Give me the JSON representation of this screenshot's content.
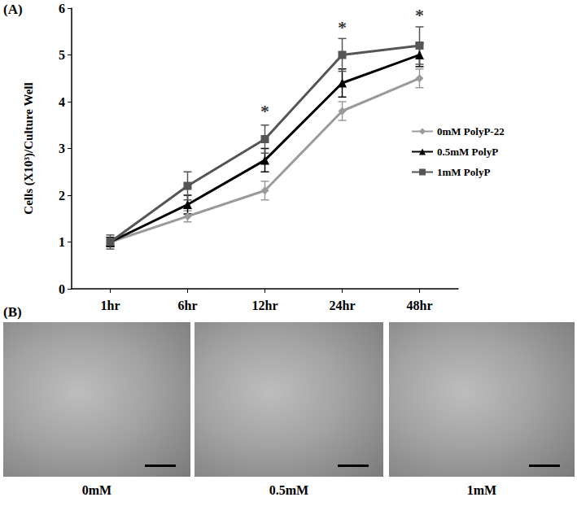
{
  "chart_data": {
    "type": "line",
    "y_label": "Cells (X10³)/Culture Well",
    "categories": [
      "1hr",
      "6hr",
      "12hr",
      "24hr",
      "48hr"
    ],
    "series": [
      {
        "name": "0mM PolyP-22",
        "color": "#9a9a9a",
        "marker": "diamond",
        "values": [
          1.0,
          1.55,
          2.1,
          3.8,
          4.5
        ],
        "errors": [
          0.1,
          0.12,
          0.2,
          0.2,
          0.2
        ]
      },
      {
        "name": "0.5mM PolyP",
        "color": "#000000",
        "marker": "triangle",
        "values": [
          1.0,
          1.8,
          2.75,
          4.4,
          5.0
        ],
        "errors": [
          0.1,
          0.2,
          0.25,
          0.3,
          0.25
        ]
      },
      {
        "name": "1mM PolyP",
        "color": "#555555",
        "marker": "square",
        "values": [
          1.0,
          2.2,
          3.2,
          5.0,
          5.2
        ],
        "errors": [
          0.15,
          0.3,
          0.3,
          0.35,
          0.4
        ]
      }
    ],
    "annotations": [
      {
        "text": "*",
        "x": "12hr",
        "y": 3.8
      },
      {
        "text": "*",
        "x": "24hr",
        "y": 5.6
      },
      {
        "text": "*",
        "x": "48hr",
        "y": 5.85
      }
    ],
    "ylim": [
      0,
      6
    ],
    "yticks": [
      0,
      1,
      2,
      3,
      4,
      5,
      6
    ],
    "grid": false,
    "legend": "right"
  },
  "figure": {
    "panel_labels": [
      "(A)",
      "(B)"
    ],
    "micrograph_captions": [
      "0mM",
      "0.5mM",
      "1mM"
    ]
  }
}
